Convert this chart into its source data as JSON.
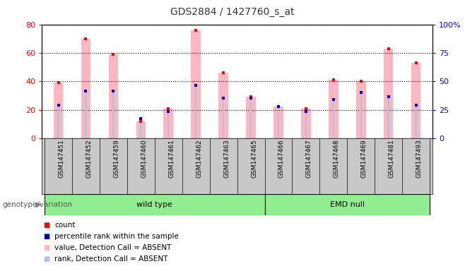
{
  "title": "GDS2884 / 1427760_s_at",
  "samples": [
    "GSM147451",
    "GSM147452",
    "GSM147459",
    "GSM147460",
    "GSM147461",
    "GSM147462",
    "GSM147463",
    "GSM147465",
    "GSM147466",
    "GSM147467",
    "GSM147468",
    "GSM147469",
    "GSM147481",
    "GSM147493"
  ],
  "count_values": [
    39,
    70,
    59,
    12,
    21,
    76,
    46,
    29,
    22,
    21,
    41,
    40,
    63,
    53
  ],
  "rank_values": [
    23,
    33,
    33,
    14,
    19,
    37,
    28,
    28,
    22,
    19,
    27,
    32,
    29,
    23
  ],
  "left_ylim": [
    0,
    80
  ],
  "right_ylim": [
    0,
    100
  ],
  "left_yticks": [
    0,
    20,
    40,
    60,
    80
  ],
  "right_yticks": [
    0,
    25,
    50,
    75,
    100
  ],
  "right_yticklabels": [
    "0",
    "25",
    "50",
    "75",
    "100%"
  ],
  "count_color": "#FFB6C1",
  "rank_color": "#B0C4DE",
  "count_marker_color": "#FF0000",
  "rank_marker_color": "#0000CD",
  "group_data": [
    {
      "label": "wild type",
      "start": 0,
      "end": 7
    },
    {
      "label": "EMD null",
      "start": 8,
      "end": 13
    }
  ],
  "group_color": "#90EE90",
  "label_bg": "#C8C8C8",
  "genotype_label": "genotype/variation",
  "legend_items": [
    {
      "label": "count",
      "color": "#FF0000"
    },
    {
      "label": "percentile rank within the sample",
      "color": "#0000CD"
    },
    {
      "label": "value, Detection Call = ABSENT",
      "color": "#FFB6C1"
    },
    {
      "label": "rank, Detection Call = ABSENT",
      "color": "#B0C4DE"
    }
  ],
  "tick_color_left": "#FF0000",
  "tick_color_right": "#0000FF",
  "plot_bg": "#FFFFFF"
}
